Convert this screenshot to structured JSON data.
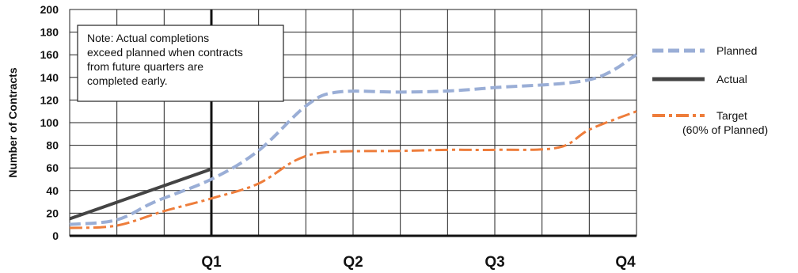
{
  "chart_data": {
    "type": "line",
    "ylabel": "Number of Contracts",
    "xlabel": "",
    "ylim": [
      0,
      200
    ],
    "yticks": [
      0,
      20,
      40,
      60,
      80,
      100,
      120,
      140,
      160,
      180,
      200
    ],
    "xlim": [
      0,
      4
    ],
    "xticks": [
      {
        "label": "Q1",
        "x": 1
      },
      {
        "label": "Q2",
        "x": 2
      },
      {
        "label": "Q3",
        "x": 3
      },
      {
        "label": "Q4",
        "x": 4
      }
    ],
    "grid": true,
    "legend_position": "right",
    "note_lines": [
      "Note: Actual completions",
      "exceed planned when contracts",
      "from future quarters are",
      "completed early."
    ],
    "series": [
      {
        "name": "Planned",
        "legend_lines": [
          "Planned"
        ],
        "color": "#9aaed6",
        "style": "dashed",
        "x": [
          0,
          0.33,
          0.6,
          1.0,
          1.33,
          1.67,
          1.89,
          2.33,
          2.67,
          3.0,
          3.67,
          4.0
        ],
        "y": [
          10,
          14,
          30,
          50,
          75,
          115,
          127,
          127,
          128,
          131,
          138,
          160
        ]
      },
      {
        "name": "Actual",
        "legend_lines": [
          "Actual"
        ],
        "color": "#444444",
        "style": "solid",
        "x": [
          0,
          1.0
        ],
        "y": [
          15,
          59
        ]
      },
      {
        "name": "Target (60% of Planned)",
        "legend_lines": [
          "Target",
          "(60% of Planned)"
        ],
        "color": "#ee7d3b",
        "style": "dashdot",
        "x": [
          0,
          0.33,
          0.67,
          1.0,
          1.33,
          1.6,
          1.83,
          2.33,
          2.67,
          3.0,
          3.45,
          3.67,
          4.0
        ],
        "y": [
          7,
          9,
          22,
          33,
          46,
          67,
          74,
          75,
          76,
          76,
          78,
          94,
          110
        ]
      }
    ]
  }
}
